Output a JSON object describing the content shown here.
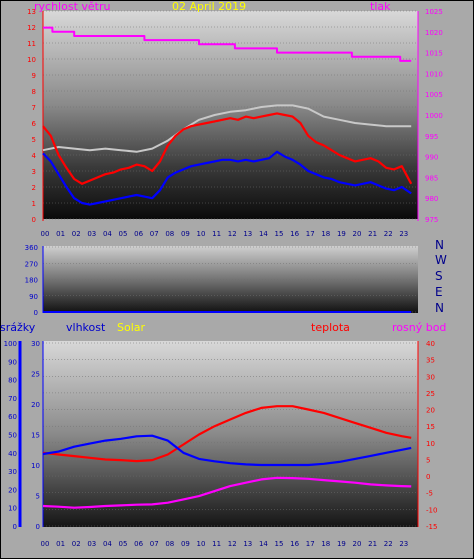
{
  "chart_data": [
    {
      "type": "line",
      "panel": "wind-pressure",
      "date_label": "02 April 2019",
      "left_title": "rychlost větru",
      "right_title": "tlak",
      "x_ticks": [
        "00",
        "01",
        "02",
        "03",
        "04",
        "05",
        "06",
        "07",
        "08",
        "09",
        "10",
        "11",
        "12",
        "13",
        "14",
        "15",
        "16",
        "17",
        "18",
        "19",
        "20",
        "21",
        "22",
        "23"
      ],
      "y_left_ticks": [
        "0",
        "1",
        "2",
        "3",
        "4",
        "5",
        "6",
        "7",
        "8",
        "9",
        "10",
        "11",
        "12",
        "13"
      ],
      "y_right_ticks": [
        "975",
        "980",
        "985",
        "990",
        "995",
        "1000",
        "1005",
        "1010",
        "1015",
        "1020",
        "1025"
      ],
      "y_left_range": [
        0,
        13
      ],
      "y_right_range": [
        975,
        1025
      ],
      "series": [
        {
          "axis": "right",
          "color": "#ff00ff",
          "x": [
            0.0,
            0.6,
            0.6,
            2.0,
            2.0,
            6.5,
            6.5,
            10.0,
            10.0,
            12.3,
            12.3,
            15.0,
            15.0,
            19.8,
            19.8,
            22.9,
            22.9,
            23.6
          ],
          "y": [
            1021.0,
            1021.0,
            1020.0,
            1020.0,
            1019.0,
            1019.0,
            1018.0,
            1018.0,
            1017.0,
            1017.0,
            1016.0,
            1016.0,
            1015.0,
            1015.0,
            1014.0,
            1014.0,
            1013.0,
            1013.0
          ]
        },
        {
          "axis": "left",
          "color": "#c8c8c8",
          "x": [
            0,
            1,
            2,
            3,
            4,
            5,
            6,
            7,
            8,
            9,
            10,
            11,
            12,
            13,
            14,
            15,
            16,
            17,
            18,
            19,
            20,
            21,
            22,
            23,
            23.6
          ],
          "y": [
            4.3,
            4.5,
            4.4,
            4.3,
            4.4,
            4.3,
            4.2,
            4.4,
            4.9,
            5.6,
            6.2,
            6.5,
            6.7,
            6.8,
            7.0,
            7.1,
            7.1,
            6.9,
            6.4,
            6.2,
            6.0,
            5.9,
            5.8,
            5.8,
            5.8
          ]
        },
        {
          "axis": "left",
          "color": "#ff0000",
          "x": [
            0,
            0.5,
            1,
            1.5,
            2,
            2.5,
            3,
            3.5,
            4,
            4.5,
            5,
            5.5,
            6,
            6.5,
            7,
            7.5,
            8,
            8.5,
            9,
            9.5,
            10,
            10.5,
            11,
            11.5,
            12,
            12.5,
            13,
            13.5,
            14,
            14.5,
            15,
            15.5,
            16,
            16.5,
            17,
            17.5,
            18,
            18.5,
            19,
            19.5,
            20,
            20.5,
            21,
            21.5,
            22,
            22.5,
            23,
            23.6
          ],
          "y": [
            5.8,
            5.2,
            4.0,
            3.2,
            2.5,
            2.2,
            2.4,
            2.6,
            2.8,
            2.9,
            3.1,
            3.2,
            3.4,
            3.3,
            3.0,
            3.6,
            4.6,
            5.2,
            5.6,
            5.8,
            5.9,
            6.0,
            6.1,
            6.2,
            6.3,
            6.2,
            6.4,
            6.3,
            6.4,
            6.5,
            6.6,
            6.5,
            6.4,
            6.0,
            5.2,
            4.8,
            4.6,
            4.3,
            4.0,
            3.8,
            3.6,
            3.7,
            3.8,
            3.6,
            3.2,
            3.1,
            3.3,
            2.2
          ]
        },
        {
          "axis": "left",
          "color": "#0000ff",
          "x": [
            0,
            0.5,
            1,
            1.5,
            2,
            2.5,
            3,
            3.5,
            4,
            4.5,
            5,
            5.5,
            6,
            6.5,
            7,
            7.5,
            8,
            8.5,
            9,
            9.5,
            10,
            10.5,
            11,
            11.5,
            12,
            12.5,
            13,
            13.5,
            14,
            14.5,
            15,
            15.5,
            16,
            16.5,
            17,
            17.5,
            18,
            18.5,
            19,
            19.5,
            20,
            20.5,
            21,
            21.5,
            22,
            22.5,
            23,
            23.6
          ],
          "y": [
            4.1,
            3.6,
            2.8,
            2.0,
            1.3,
            1.0,
            0.9,
            1.0,
            1.1,
            1.2,
            1.3,
            1.4,
            1.5,
            1.4,
            1.3,
            1.8,
            2.6,
            2.9,
            3.1,
            3.3,
            3.4,
            3.5,
            3.6,
            3.7,
            3.7,
            3.6,
            3.7,
            3.6,
            3.7,
            3.8,
            4.2,
            3.9,
            3.7,
            3.4,
            3.0,
            2.8,
            2.6,
            2.5,
            2.3,
            2.2,
            2.1,
            2.2,
            2.3,
            2.1,
            1.9,
            1.8,
            2.0,
            1.6
          ]
        }
      ]
    },
    {
      "type": "line",
      "panel": "wind-direction",
      "y_ticks": [
        "360",
        "270",
        "180",
        "90",
        "0"
      ],
      "y_range": [
        0,
        360
      ],
      "compass_labels": [
        "N",
        "W",
        "S",
        "E",
        "N"
      ],
      "series": [
        {
          "color": "#0000ff",
          "x": [
            0,
            23.6
          ],
          "y": [
            0,
            0
          ]
        }
      ]
    },
    {
      "type": "line",
      "panel": "temperature-humidity",
      "labels": {
        "rain": "srážky",
        "humidity": "vlhkost",
        "solar": "Solar",
        "temperature": "teplota",
        "dewpoint": "rosný bod"
      },
      "x_ticks": [
        "00",
        "01",
        "02",
        "03",
        "04",
        "05",
        "06",
        "07",
        "08",
        "09",
        "10",
        "11",
        "12",
        "13",
        "14",
        "15",
        "16",
        "17",
        "18",
        "19",
        "20",
        "21",
        "22",
        "23"
      ],
      "y_rain_ticks": [
        "0",
        "10",
        "20",
        "30",
        "40",
        "50",
        "60",
        "70",
        "80",
        "90",
        "100"
      ],
      "y_humidity_ticks": [
        "0",
        "5",
        "10",
        "15",
        "20",
        "25",
        "30"
      ],
      "y_temp_ticks": [
        "-15",
        "-10",
        "-5",
        "0",
        "5",
        "10",
        "15",
        "20",
        "25",
        "30",
        "35",
        "40"
      ],
      "y_rain_range": [
        0,
        100
      ],
      "y_humidity_range": [
        0,
        30
      ],
      "y_temp_range": [
        -15,
        40
      ],
      "series": [
        {
          "axis": "temperature",
          "color": "#ff0000",
          "x": [
            0,
            1,
            2,
            3,
            4,
            5,
            6,
            7,
            8,
            9,
            10,
            11,
            12,
            13,
            14,
            15,
            16,
            17,
            18,
            19,
            20,
            21,
            22,
            23,
            23.6
          ],
          "y": [
            7.0,
            6.5,
            6.0,
            5.5,
            5.0,
            4.8,
            4.5,
            4.8,
            6.5,
            9.5,
            12.5,
            15.0,
            17.0,
            19.0,
            20.5,
            21.0,
            21.0,
            20.0,
            19.0,
            17.5,
            16.0,
            14.5,
            13.0,
            12.0,
            11.5
          ]
        },
        {
          "axis": "humidity",
          "color": "#0000ff",
          "x": [
            0,
            1,
            2,
            3,
            4,
            5,
            6,
            7,
            8,
            9,
            10,
            11,
            12,
            13,
            14,
            15,
            16,
            17,
            18,
            19,
            20,
            21,
            22,
            23,
            23.6
          ],
          "y": [
            11.8,
            12.2,
            13.0,
            13.5,
            14.0,
            14.3,
            14.7,
            14.8,
            14.0,
            12.0,
            11.0,
            10.6,
            10.3,
            10.1,
            10.0,
            10.0,
            10.0,
            10.0,
            10.2,
            10.5,
            11.0,
            11.5,
            12.0,
            12.5,
            12.8
          ]
        },
        {
          "axis": "temperature",
          "color": "#ff00ff",
          "x": [
            0,
            1,
            2,
            3,
            4,
            5,
            6,
            7,
            8,
            9,
            10,
            11,
            12,
            13,
            14,
            15,
            16,
            17,
            18,
            19,
            20,
            21,
            22,
            23,
            23.6
          ],
          "y": [
            -9.0,
            -9.2,
            -9.5,
            -9.3,
            -9.0,
            -8.8,
            -8.6,
            -8.5,
            -8.0,
            -7.0,
            -6.0,
            -4.5,
            -3.0,
            -2.0,
            -1.0,
            -0.5,
            -0.6,
            -0.8,
            -1.2,
            -1.6,
            -2.0,
            -2.5,
            -2.8,
            -3.0,
            -3.1
          ]
        }
      ]
    }
  ]
}
